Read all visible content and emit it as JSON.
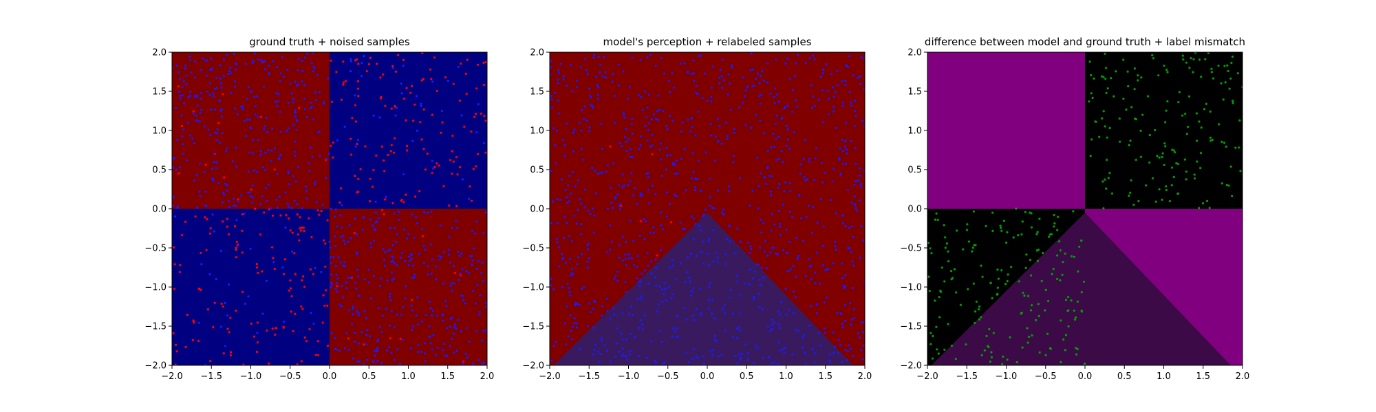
{
  "chart_data": [
    {
      "type": "scatter",
      "title": "ground truth + noised samples",
      "xlim": [
        -2.0,
        2.0
      ],
      "ylim": [
        -2.0,
        2.0
      ],
      "x_ticks": [
        "−2.0",
        "−1.5",
        "−1.0",
        "−0.5",
        "0.0",
        "0.5",
        "1.0",
        "1.5",
        "2.0"
      ],
      "y_ticks": [
        "2.0",
        "1.5",
        "1.0",
        "0.5",
        "0.0",
        "−0.5",
        "−1.0",
        "−1.5",
        "−2.0"
      ],
      "grid": false,
      "background_regions": [
        {
          "region": "quadrant x<0, y>0",
          "color": "#800000"
        },
        {
          "region": "quadrant x>0, y>0",
          "color": "#000080"
        },
        {
          "region": "quadrant x<0, y<0",
          "color": "#000080"
        },
        {
          "region": "quadrant x>0, y<0",
          "color": "#800000"
        }
      ],
      "series": [
        {
          "color": "#ff0000",
          "approx_count": 300,
          "distribution": "noised samples, concentrated mostly in quadrants x>0,y>0 and x<0,y<0"
        },
        {
          "color": "#1a1aff",
          "approx_count": 700,
          "distribution": "noised samples, concentrated mostly in quadrants x<0,y>0 and x>0,y<0"
        }
      ]
    },
    {
      "type": "scatter",
      "title": "model's perception + relabeled samples",
      "xlim": [
        -2.0,
        2.0
      ],
      "ylim": [
        -2.0,
        2.0
      ],
      "x_ticks": [
        "−2.0",
        "−1.5",
        "−1.0",
        "−0.5",
        "0.0",
        "0.5",
        "1.0",
        "1.5",
        "2.0"
      ],
      "y_ticks": [
        "2.0",
        "1.5",
        "1.0",
        "0.5",
        "0.0",
        "−0.5",
        "−1.0",
        "−1.5",
        "−2.0"
      ],
      "grid": false,
      "background_regions": [
        {
          "region": "outside triangle",
          "color": "#800000"
        },
        {
          "region": "triangle with apex (0.0,-0.05) and base from (-1.95,-2.0) to (1.85,-2.0)",
          "color": "#3a1a5e"
        }
      ],
      "series": [
        {
          "color": "#ff0000",
          "approx_count": 6,
          "distribution": "few relabeled samples"
        },
        {
          "color": "#1a1aff",
          "approx_count": 1000,
          "distribution": "relabeled samples spread over the full plane"
        }
      ]
    },
    {
      "type": "scatter",
      "title": "difference between model and ground truth + label mismatch",
      "xlim": [
        -2.0,
        2.0
      ],
      "ylim": [
        -2.0,
        2.0
      ],
      "x_ticks": [
        "−2.0",
        "−1.5",
        "−1.0",
        "−0.5",
        "0.0",
        "0.5",
        "1.0",
        "1.5",
        "2.0"
      ],
      "y_ticks": [
        "2.0",
        "1.5",
        "1.0",
        "0.5",
        "0.0",
        "−0.5",
        "−1.0",
        "−1.5",
        "−2.0"
      ],
      "grid": false,
      "background_regions": [
        {
          "region": "quadrant x<0, y>0",
          "color": "#800080"
        },
        {
          "region": "quadrant x>0, y>0",
          "color": "#000000"
        },
        {
          "region": "quadrant x<0, y<0 outside triangle",
          "color": "#000000"
        },
        {
          "region": "quadrant x>0, y<0 outside triangle",
          "color": "#800080"
        },
        {
          "region": "triangle with apex (0.0,-0.05) and base from (-1.95,-2.0) to (1.85,-2.0)",
          "color": "#3c0a46"
        }
      ],
      "series": [
        {
          "color": "#00a000",
          "approx_count": 360,
          "distribution": "label mismatch samples, mostly in quadrant x>0,y>0 and quadrant x<0,y<0"
        }
      ]
    }
  ]
}
